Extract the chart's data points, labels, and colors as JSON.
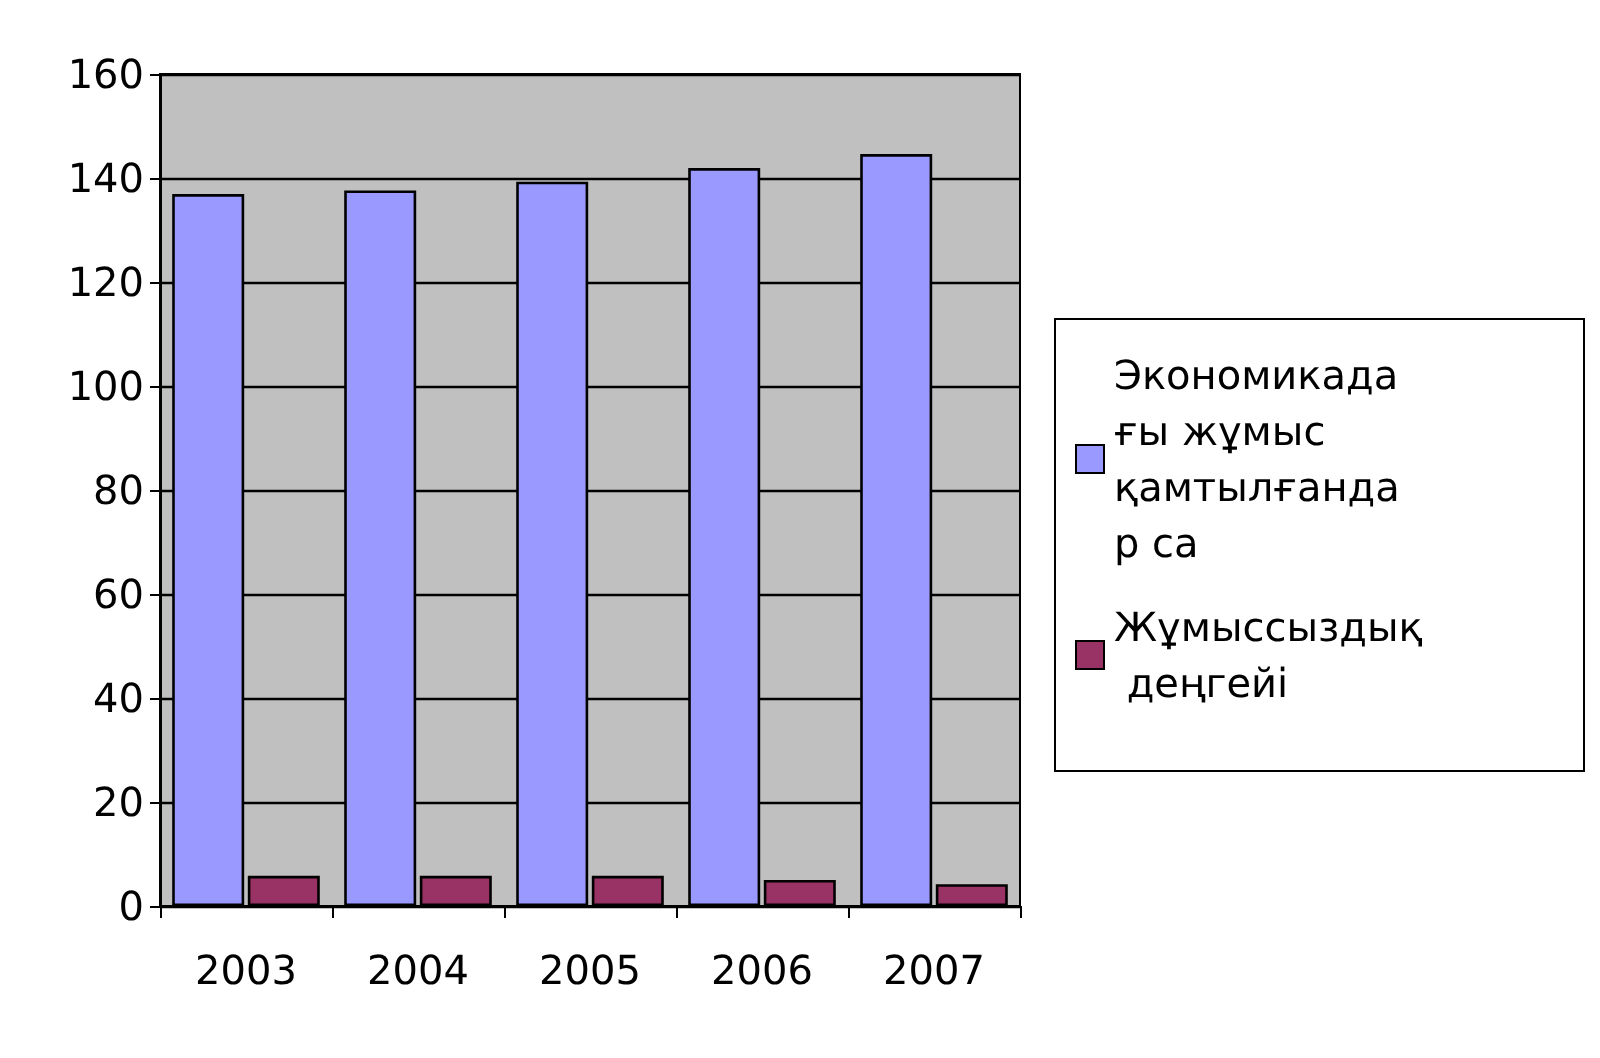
{
  "chart_data": {
    "type": "bar",
    "categories": [
      "2003",
      "2004",
      "2005",
      "2006",
      "2007"
    ],
    "series": [
      {
        "name": "Экономикадағы жұмыс қамтылғандар са",
        "color": "#9999ff",
        "values": [
          136.9,
          137.6,
          139.3,
          141.9,
          144.6
        ]
      },
      {
        "name": "Жұмыссыздық деңгейі",
        "color": "#993366",
        "values": [
          5.8,
          5.8,
          5.8,
          5.0,
          4.2
        ]
      }
    ],
    "ylim": [
      0,
      160
    ],
    "yticks": [
      0,
      20,
      40,
      60,
      80,
      100,
      120,
      140,
      160
    ],
    "grid": "y",
    "legend": "right"
  }
}
